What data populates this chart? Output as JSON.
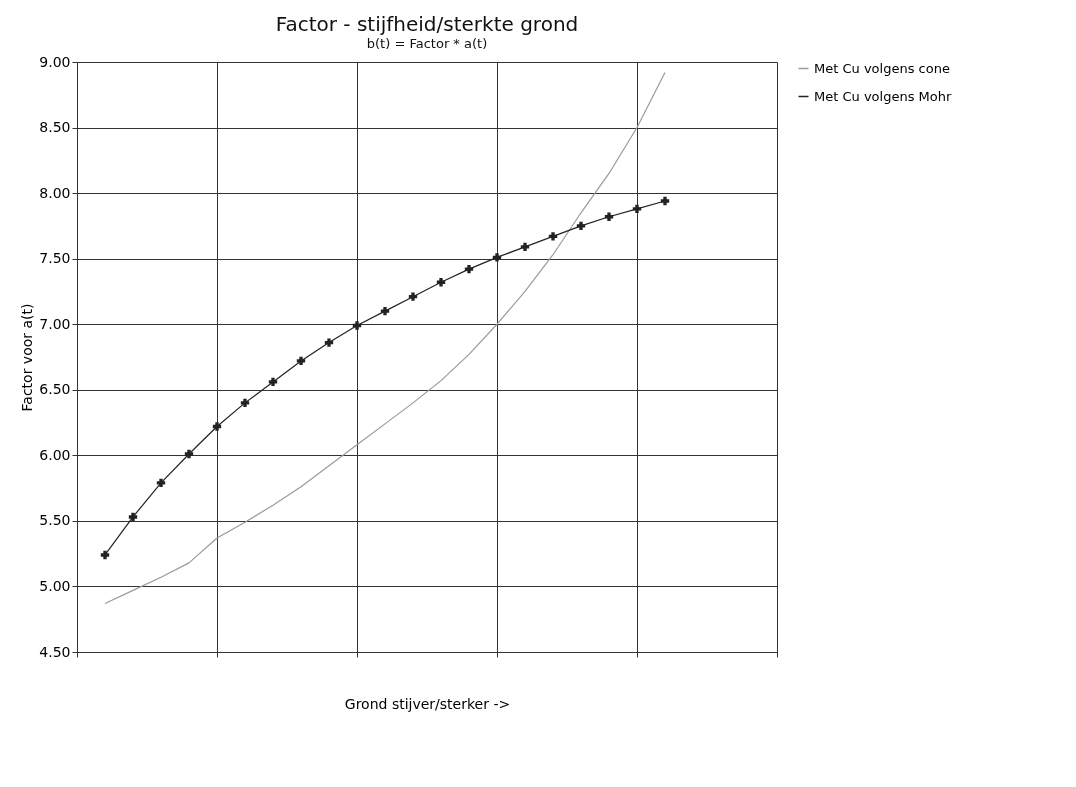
{
  "chart_data": {
    "type": "line",
    "title": "Factor - stijfheid/sterkte grond",
    "subtitle": "b(t) = Factor * a(t)",
    "xlabel": "Grond stijver/sterker ->",
    "ylabel": "Factor voor a(t)",
    "categories": [
      null,
      null,
      null,
      null,
      null,
      null,
      null,
      null,
      null,
      null,
      null,
      null,
      null,
      null,
      null,
      null,
      null,
      null,
      null,
      null,
      null,
      null,
      null,
      null,
      null,
      null
    ],
    "series": [
      {
        "name": "Met Cu volgens cone",
        "color": "#9a9a9a",
        "marker": "none",
        "values": [
          null,
          4.87,
          4.97,
          5.07,
          5.18,
          5.37,
          5.49,
          5.62,
          5.76,
          5.92,
          6.08,
          6.24,
          6.4,
          6.57,
          6.77,
          7.0,
          7.25,
          7.53,
          7.85,
          8.15,
          8.5,
          8.92,
          null,
          null,
          null,
          null
        ]
      },
      {
        "name": "Met Cu volgens Mohr",
        "color": "#222222",
        "marker": "cross",
        "values": [
          null,
          5.24,
          5.53,
          5.79,
          6.01,
          6.22,
          6.4,
          6.56,
          6.72,
          6.86,
          6.99,
          7.1,
          7.21,
          7.32,
          7.42,
          7.51,
          7.59,
          7.67,
          7.75,
          7.82,
          7.88,
          7.94,
          null,
          null,
          null,
          null
        ]
      }
    ],
    "ylim": [
      4.5,
      9.0
    ],
    "yticks": [
      {
        "value": 4.5,
        "label": "4.50"
      },
      {
        "value": 5.0,
        "label": "5.00"
      },
      {
        "value": 5.5,
        "label": "5.50"
      },
      {
        "value": 6.0,
        "label": "6.00"
      },
      {
        "value": 6.5,
        "label": "6.50"
      },
      {
        "value": 7.0,
        "label": "7.00"
      },
      {
        "value": 7.5,
        "label": "7.50"
      },
      {
        "value": 8.0,
        "label": "8.00"
      },
      {
        "value": 8.5,
        "label": "8.50"
      },
      {
        "value": 9.0,
        "label": "9.00"
      }
    ],
    "grid": true,
    "legend": "top right",
    "tick_labels": "y",
    "line_style": "solid"
  }
}
